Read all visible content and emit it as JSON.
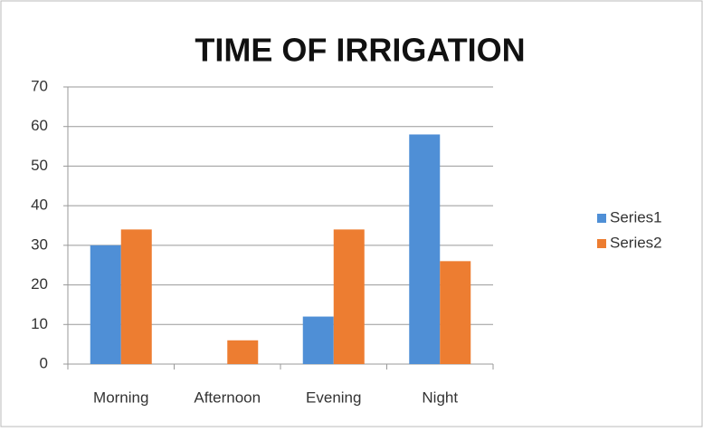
{
  "chart_data": {
    "type": "bar",
    "title": "TIME OF IRRIGATION",
    "categories": [
      "Morning",
      "Afternoon",
      "Evening",
      "Night"
    ],
    "series": [
      {
        "name": "Series1",
        "color": "#4f8fd6",
        "values": [
          30,
          0,
          12,
          58
        ]
      },
      {
        "name": "Series2",
        "color": "#ed7d31",
        "values": [
          34,
          6,
          34,
          26
        ]
      }
    ],
    "ylim": [
      0,
      70
    ],
    "yticks": [
      0,
      10,
      20,
      30,
      40,
      50,
      60,
      70
    ],
    "grid": true,
    "legend": "right"
  }
}
